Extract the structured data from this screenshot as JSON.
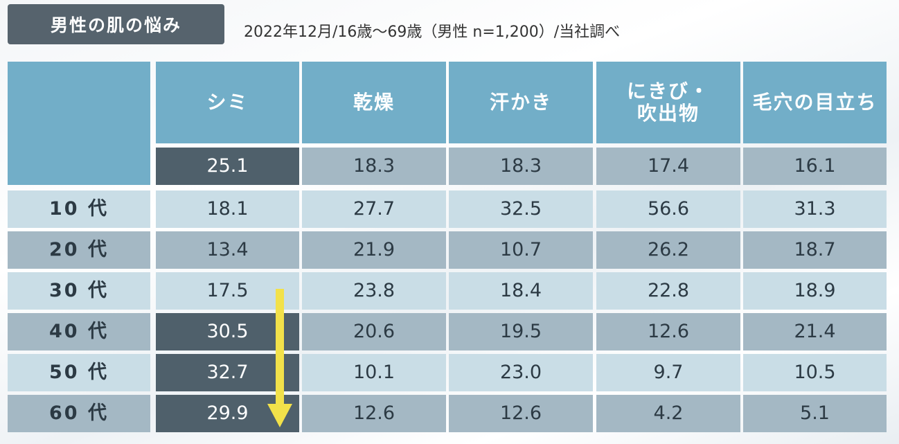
{
  "title": "男性の肌の悩み",
  "subtitle": "2022年12月/16歳～69歳（男性 n=1,200）/当社調べ",
  "columns": [
    "シミ",
    "乾燥",
    "汗かき",
    "にきび・\n吹出物",
    "毛穴の目立ち"
  ],
  "total_row": [
    "25.1",
    "18.3",
    "18.3",
    "17.4",
    "16.1"
  ],
  "rows": [
    {
      "label": "10 代",
      "values": [
        "18.1",
        "27.7",
        "32.5",
        "56.6",
        "31.3"
      ]
    },
    {
      "label": "20 代",
      "values": [
        "13.4",
        "21.9",
        "10.7",
        "26.2",
        "18.7"
      ]
    },
    {
      "label": "30 代",
      "values": [
        "17.5",
        "23.8",
        "18.4",
        "22.8",
        "18.9"
      ]
    },
    {
      "label": "40 代",
      "values": [
        "30.5",
        "20.6",
        "19.5",
        "12.6",
        "21.4"
      ]
    },
    {
      "label": "50 代",
      "values": [
        "32.7",
        "10.1",
        "23.0",
        "9.7",
        "10.5"
      ]
    },
    {
      "label": "60 代",
      "values": [
        "29.9",
        "12.6",
        "12.6",
        "4.2",
        "5.1"
      ]
    }
  ],
  "colors": {
    "header": "#72aec8",
    "highlight": "#4f606b",
    "row_light": "#c9dde6",
    "row_dark": "#a4b8c4",
    "arrow": "#f2e14a"
  },
  "icons": {
    "trend_arrow": "down-arrow-icon"
  }
}
